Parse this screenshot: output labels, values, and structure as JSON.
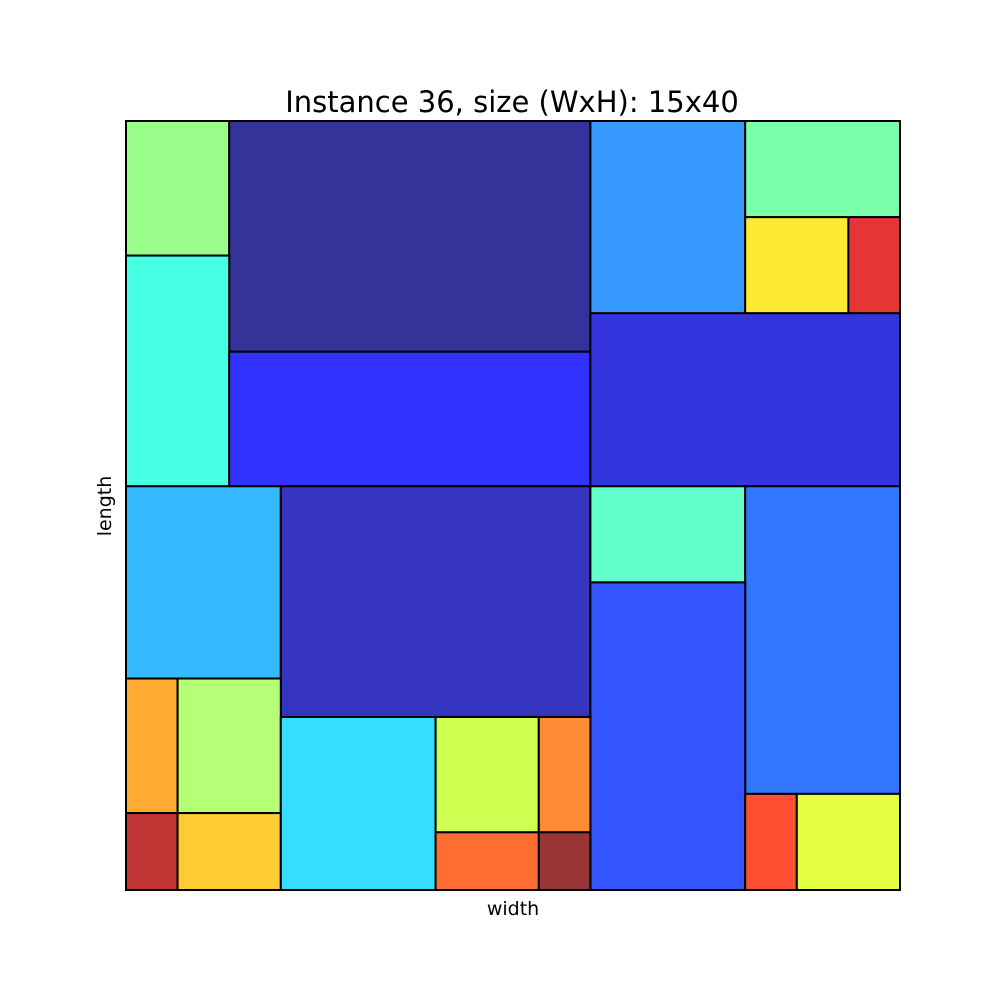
{
  "chart_data": {
    "type": "rectangle-packing",
    "title": "Instance 36, size (WxH): 15x40",
    "xlabel": "width",
    "ylabel": "length",
    "container": {
      "width": 15,
      "height": 40
    },
    "rectangles": [
      {
        "x": 0,
        "y": 33,
        "w": 2,
        "h": 7,
        "color": "#99ff8a"
      },
      {
        "x": 2,
        "y": 28,
        "w": 7,
        "h": 12,
        "color": "#333399"
      },
      {
        "x": 9,
        "y": 30,
        "w": 3,
        "h": 10,
        "color": "#3899ff"
      },
      {
        "x": 12,
        "y": 35,
        "w": 3,
        "h": 5,
        "color": "#7bffaa"
      },
      {
        "x": 12,
        "y": 30,
        "w": 2,
        "h": 5,
        "color": "#ffea33"
      },
      {
        "x": 14,
        "y": 30,
        "w": 1,
        "h": 5,
        "color": "#e53535"
      },
      {
        "x": 0,
        "y": 21,
        "w": 2,
        "h": 12,
        "color": "#47ffe2"
      },
      {
        "x": 2,
        "y": 21,
        "w": 7,
        "h": 7,
        "color": "#3333ff"
      },
      {
        "x": 9,
        "y": 21,
        "w": 6,
        "h": 9,
        "color": "#3535e0"
      },
      {
        "x": 0,
        "y": 11,
        "w": 3,
        "h": 10,
        "color": "#35b9ff"
      },
      {
        "x": 3,
        "y": 9,
        "w": 6,
        "h": 12,
        "color": "#3535bf"
      },
      {
        "x": 9,
        "y": 16,
        "w": 3,
        "h": 5,
        "color": "#63ffca"
      },
      {
        "x": 12,
        "y": 5,
        "w": 3,
        "h": 16,
        "color": "#3377ff"
      },
      {
        "x": 9,
        "y": 0,
        "w": 3,
        "h": 16,
        "color": "#3355ff"
      },
      {
        "x": 0,
        "y": 4,
        "w": 1,
        "h": 7,
        "color": "#ffaa33"
      },
      {
        "x": 1,
        "y": 4,
        "w": 2,
        "h": 7,
        "color": "#b5ff77"
      },
      {
        "x": 0,
        "y": 0,
        "w": 1,
        "h": 4,
        "color": "#c23535"
      },
      {
        "x": 1,
        "y": 0,
        "w": 2,
        "h": 4,
        "color": "#ffcc33"
      },
      {
        "x": 3,
        "y": 0,
        "w": 3,
        "h": 9,
        "color": "#35ddff"
      },
      {
        "x": 6,
        "y": 3,
        "w": 2,
        "h": 6,
        "color": "#ccff4f"
      },
      {
        "x": 8,
        "y": 3,
        "w": 1,
        "h": 6,
        "color": "#ff8c35"
      },
      {
        "x": 6,
        "y": 0,
        "w": 2,
        "h": 3,
        "color": "#ff6d33"
      },
      {
        "x": 8,
        "y": 0,
        "w": 1,
        "h": 3,
        "color": "#993535"
      },
      {
        "x": 12,
        "y": 0,
        "w": 1,
        "h": 5,
        "color": "#ff5033"
      },
      {
        "x": 13,
        "y": 0,
        "w": 2,
        "h": 5,
        "color": "#e5ff44"
      }
    ]
  }
}
